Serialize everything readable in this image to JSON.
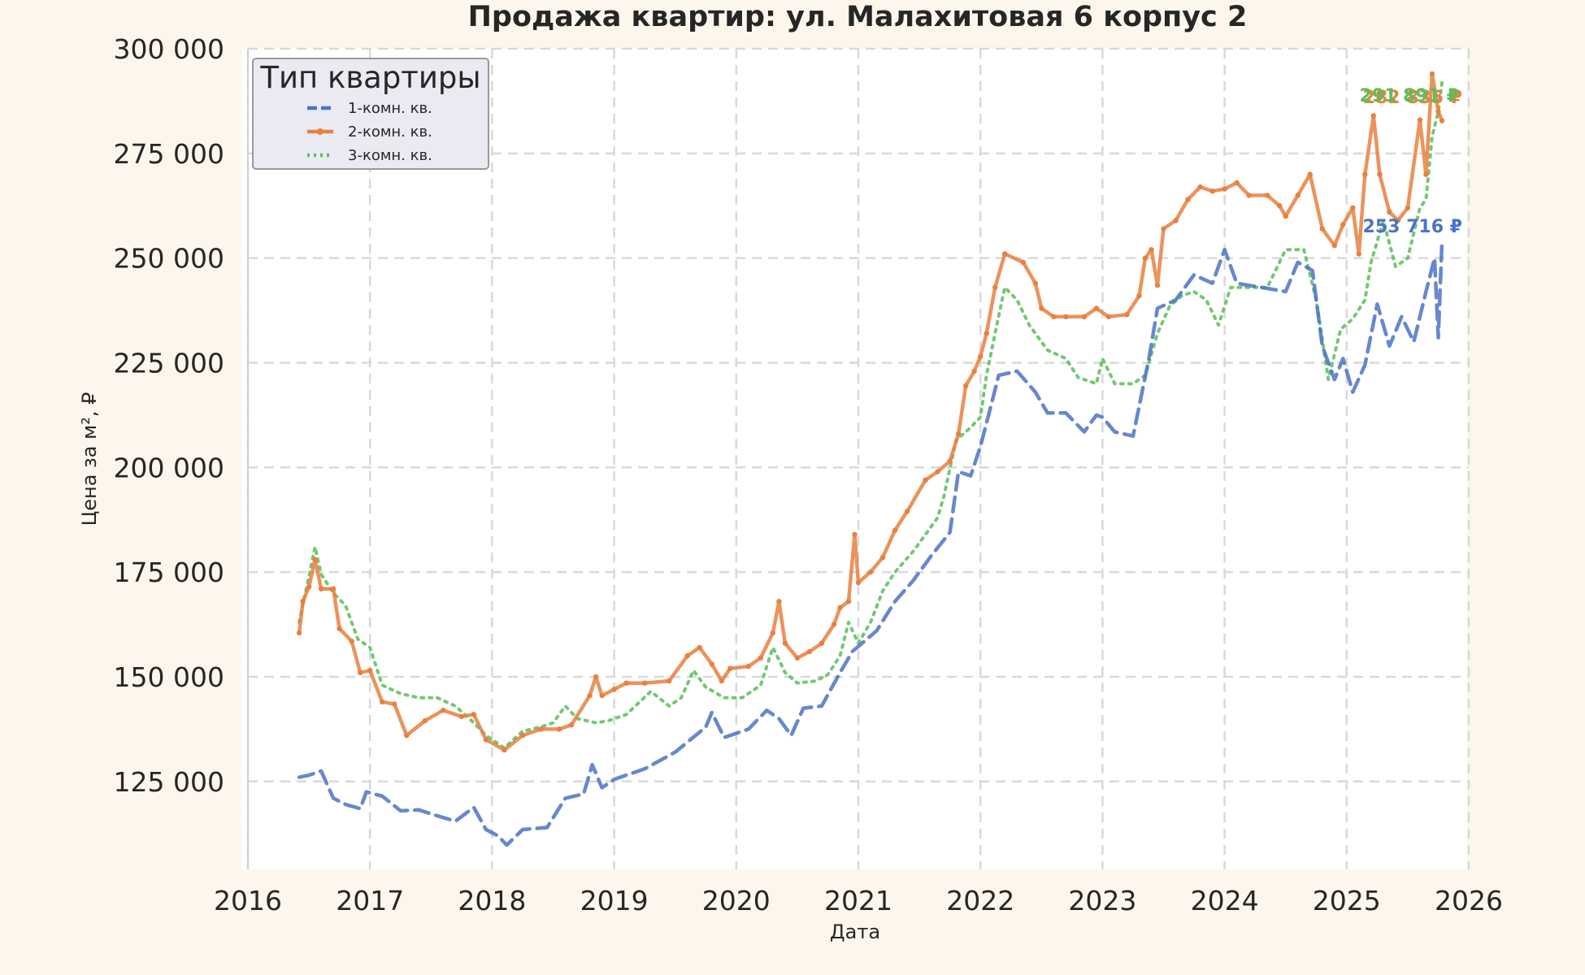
{
  "chart_data": {
    "type": "line",
    "title": "Продажа квартир: ул. Малахитовая 6 корпус 2",
    "xlabel": "Дата",
    "ylabel": "Цена за м², ₽",
    "xlim": [
      2016,
      2026
    ],
    "ylim": [
      104000,
      300000
    ],
    "x_ticks": [
      "2016",
      "2017",
      "2018",
      "2019",
      "2020",
      "2021",
      "2022",
      "2023",
      "2024",
      "2025",
      "2026"
    ],
    "y_ticks": [
      "125 000",
      "150 000",
      "175 000",
      "200 000",
      "225 000",
      "250 000",
      "275 000",
      "300 000"
    ],
    "grid": true,
    "legend": {
      "title": "Тип квартиры",
      "placement": "top-left",
      "entries": [
        "1-комн. кв.",
        "2-комн. кв.",
        "3-комн. кв."
      ]
    },
    "series": [
      {
        "name": "1-комн. кв.",
        "color": "#4c72c8",
        "style": "dashed",
        "end_label": "253 716 ₽",
        "points": [
          [
            2016.42,
            126000
          ],
          [
            2016.5,
            126500
          ],
          [
            2016.6,
            127500
          ],
          [
            2016.7,
            121000
          ],
          [
            2016.8,
            119500
          ],
          [
            2016.92,
            118500
          ],
          [
            2016.97,
            122500
          ],
          [
            2017.1,
            121500
          ],
          [
            2017.25,
            118000
          ],
          [
            2017.4,
            118200
          ],
          [
            2017.55,
            116800
          ],
          [
            2017.7,
            115500
          ],
          [
            2017.85,
            118800
          ],
          [
            2017.95,
            113500
          ],
          [
            2018.05,
            112000
          ],
          [
            2018.12,
            109800
          ],
          [
            2018.25,
            113500
          ],
          [
            2018.45,
            114000
          ],
          [
            2018.6,
            121000
          ],
          [
            2018.75,
            122000
          ],
          [
            2018.82,
            129000
          ],
          [
            2018.9,
            123500
          ],
          [
            2019.0,
            125500
          ],
          [
            2019.25,
            128000
          ],
          [
            2019.5,
            132000
          ],
          [
            2019.75,
            138000
          ],
          [
            2019.8,
            141500
          ],
          [
            2019.9,
            135500
          ],
          [
            2020.1,
            137500
          ],
          [
            2020.25,
            142000
          ],
          [
            2020.35,
            140000
          ],
          [
            2020.45,
            136000
          ],
          [
            2020.55,
            142500
          ],
          [
            2020.7,
            143000
          ],
          [
            2020.85,
            151000
          ],
          [
            2020.95,
            156000
          ],
          [
            2021.15,
            161000
          ],
          [
            2021.3,
            168000
          ],
          [
            2021.45,
            173000
          ],
          [
            2021.6,
            179000
          ],
          [
            2021.75,
            184500
          ],
          [
            2021.82,
            199000
          ],
          [
            2021.92,
            198000
          ],
          [
            2022.0,
            205000
          ],
          [
            2022.08,
            214000
          ],
          [
            2022.15,
            222000
          ],
          [
            2022.3,
            223000
          ],
          [
            2022.45,
            218000
          ],
          [
            2022.55,
            213000
          ],
          [
            2022.7,
            213000
          ],
          [
            2022.85,
            208500
          ],
          [
            2022.95,
            212500
          ],
          [
            2023.0,
            212000
          ],
          [
            2023.1,
            208500
          ],
          [
            2023.25,
            207500
          ],
          [
            2023.38,
            226000
          ],
          [
            2023.45,
            238000
          ],
          [
            2023.6,
            240000
          ],
          [
            2023.75,
            246000
          ],
          [
            2023.9,
            244000
          ],
          [
            2024.0,
            252000
          ],
          [
            2024.1,
            244000
          ],
          [
            2024.3,
            243000
          ],
          [
            2024.5,
            242000
          ],
          [
            2024.6,
            249000
          ],
          [
            2024.72,
            247000
          ],
          [
            2024.8,
            229000
          ],
          [
            2024.9,
            221000
          ],
          [
            2024.97,
            226000
          ],
          [
            2025.05,
            218000
          ],
          [
            2025.15,
            224500
          ],
          [
            2025.25,
            239000
          ],
          [
            2025.35,
            229000
          ],
          [
            2025.45,
            236000
          ],
          [
            2025.55,
            230000
          ],
          [
            2025.65,
            242000
          ],
          [
            2025.72,
            250000
          ],
          [
            2025.75,
            231000
          ],
          [
            2025.78,
            253716
          ]
        ]
      },
      {
        "name": "2-комн. кв.",
        "color": "#e8803f",
        "style": "solid-markers",
        "end_label": "282 835 ₽",
        "points": [
          [
            2016.42,
            160500
          ],
          [
            2016.45,
            168000
          ],
          [
            2016.5,
            171500
          ],
          [
            2016.55,
            178000
          ],
          [
            2016.6,
            171000
          ],
          [
            2016.7,
            171000
          ],
          [
            2016.75,
            161500
          ],
          [
            2016.85,
            158500
          ],
          [
            2016.92,
            151000
          ],
          [
            2017.0,
            151500
          ],
          [
            2017.1,
            144000
          ],
          [
            2017.2,
            143500
          ],
          [
            2017.3,
            136000
          ],
          [
            2017.45,
            139500
          ],
          [
            2017.6,
            142000
          ],
          [
            2017.75,
            140500
          ],
          [
            2017.85,
            141000
          ],
          [
            2017.95,
            135000
          ],
          [
            2018.1,
            132500
          ],
          [
            2018.25,
            136000
          ],
          [
            2018.4,
            137500
          ],
          [
            2018.55,
            137500
          ],
          [
            2018.65,
            138500
          ],
          [
            2018.8,
            145500
          ],
          [
            2018.85,
            150000
          ],
          [
            2018.9,
            145500
          ],
          [
            2019.0,
            147000
          ],
          [
            2019.1,
            148500
          ],
          [
            2019.25,
            148500
          ],
          [
            2019.45,
            149000
          ],
          [
            2019.6,
            155000
          ],
          [
            2019.7,
            157000
          ],
          [
            2019.8,
            153000
          ],
          [
            2019.88,
            149000
          ],
          [
            2019.95,
            152000
          ],
          [
            2020.1,
            152500
          ],
          [
            2020.2,
            154500
          ],
          [
            2020.3,
            160500
          ],
          [
            2020.35,
            168000
          ],
          [
            2020.4,
            158000
          ],
          [
            2020.5,
            154500
          ],
          [
            2020.6,
            156000
          ],
          [
            2020.7,
            158000
          ],
          [
            2020.8,
            162500
          ],
          [
            2020.85,
            166500
          ],
          [
            2020.92,
            168000
          ],
          [
            2020.97,
            184000
          ],
          [
            2021.0,
            172500
          ],
          [
            2021.1,
            175000
          ],
          [
            2021.2,
            178500
          ],
          [
            2021.3,
            185000
          ],
          [
            2021.4,
            189500
          ],
          [
            2021.55,
            197000
          ],
          [
            2021.65,
            199000
          ],
          [
            2021.75,
            201500
          ],
          [
            2021.82,
            208000
          ],
          [
            2021.88,
            219500
          ],
          [
            2021.95,
            223000
          ],
          [
            2022.0,
            226500
          ],
          [
            2022.05,
            232000
          ],
          [
            2022.12,
            243000
          ],
          [
            2022.2,
            251000
          ],
          [
            2022.35,
            249000
          ],
          [
            2022.45,
            244000
          ],
          [
            2022.5,
            238000
          ],
          [
            2022.6,
            236000
          ],
          [
            2022.7,
            236000
          ],
          [
            2022.85,
            236000
          ],
          [
            2022.95,
            238000
          ],
          [
            2023.05,
            236000
          ],
          [
            2023.2,
            236500
          ],
          [
            2023.3,
            241000
          ],
          [
            2023.35,
            250000
          ],
          [
            2023.4,
            252000
          ],
          [
            2023.45,
            243500
          ],
          [
            2023.5,
            257000
          ],
          [
            2023.6,
            259000
          ],
          [
            2023.7,
            264000
          ],
          [
            2023.8,
            267000
          ],
          [
            2023.9,
            266000
          ],
          [
            2024.0,
            266500
          ],
          [
            2024.1,
            268000
          ],
          [
            2024.2,
            265000
          ],
          [
            2024.35,
            265000
          ],
          [
            2024.45,
            262500
          ],
          [
            2024.5,
            260000
          ],
          [
            2024.6,
            265000
          ],
          [
            2024.7,
            270000
          ],
          [
            2024.8,
            257000
          ],
          [
            2024.9,
            253000
          ],
          [
            2024.97,
            258000
          ],
          [
            2025.05,
            262000
          ],
          [
            2025.1,
            251000
          ],
          [
            2025.15,
            270000
          ],
          [
            2025.22,
            284000
          ],
          [
            2025.27,
            270000
          ],
          [
            2025.35,
            261000
          ],
          [
            2025.42,
            259000
          ],
          [
            2025.5,
            262000
          ],
          [
            2025.6,
            283000
          ],
          [
            2025.65,
            270000
          ],
          [
            2025.7,
            294000
          ],
          [
            2025.75,
            285000
          ],
          [
            2025.78,
            282835
          ]
        ]
      },
      {
        "name": "3-комн. кв.",
        "color": "#5bbf5b",
        "style": "dotted",
        "end_label": "291 891 ₽",
        "points": [
          [
            2016.42,
            163000
          ],
          [
            2016.5,
            174000
          ],
          [
            2016.55,
            181000
          ],
          [
            2016.6,
            174500
          ],
          [
            2016.7,
            170000
          ],
          [
            2016.8,
            167000
          ],
          [
            2016.9,
            159000
          ],
          [
            2017.0,
            157000
          ],
          [
            2017.1,
            148000
          ],
          [
            2017.25,
            146000
          ],
          [
            2017.4,
            145000
          ],
          [
            2017.55,
            145000
          ],
          [
            2017.7,
            143000
          ],
          [
            2017.85,
            139000
          ],
          [
            2017.95,
            136000
          ],
          [
            2018.1,
            133000
          ],
          [
            2018.25,
            137000
          ],
          [
            2018.4,
            138000
          ],
          [
            2018.5,
            139000
          ],
          [
            2018.6,
            143000
          ],
          [
            2018.7,
            140000
          ],
          [
            2018.85,
            139000
          ],
          [
            2018.95,
            139500
          ],
          [
            2019.1,
            141000
          ],
          [
            2019.3,
            146500
          ],
          [
            2019.45,
            143000
          ],
          [
            2019.55,
            145000
          ],
          [
            2019.65,
            151500
          ],
          [
            2019.75,
            147500
          ],
          [
            2019.9,
            145000
          ],
          [
            2020.05,
            145000
          ],
          [
            2020.2,
            148000
          ],
          [
            2020.3,
            157000
          ],
          [
            2020.4,
            151000
          ],
          [
            2020.5,
            148500
          ],
          [
            2020.65,
            149000
          ],
          [
            2020.75,
            150500
          ],
          [
            2020.85,
            155000
          ],
          [
            2020.92,
            163000
          ],
          [
            2021.0,
            158000
          ],
          [
            2021.1,
            163000
          ],
          [
            2021.2,
            170500
          ],
          [
            2021.3,
            175000
          ],
          [
            2021.45,
            180000
          ],
          [
            2021.55,
            184000
          ],
          [
            2021.65,
            188000
          ],
          [
            2021.7,
            193000
          ],
          [
            2021.8,
            206500
          ],
          [
            2021.9,
            209000
          ],
          [
            2022.0,
            212000
          ],
          [
            2022.05,
            222000
          ],
          [
            2022.12,
            232000
          ],
          [
            2022.2,
            243000
          ],
          [
            2022.3,
            240000
          ],
          [
            2022.4,
            234000
          ],
          [
            2022.55,
            228000
          ],
          [
            2022.7,
            226000
          ],
          [
            2022.8,
            221500
          ],
          [
            2022.95,
            220000
          ],
          [
            2023.0,
            226000
          ],
          [
            2023.1,
            220000
          ],
          [
            2023.25,
            220000
          ],
          [
            2023.35,
            222000
          ],
          [
            2023.45,
            232000
          ],
          [
            2023.55,
            238500
          ],
          [
            2023.65,
            241000
          ],
          [
            2023.75,
            242000
          ],
          [
            2023.85,
            240000
          ],
          [
            2023.95,
            234000
          ],
          [
            2024.05,
            243000
          ],
          [
            2024.2,
            243000
          ],
          [
            2024.35,
            243000
          ],
          [
            2024.5,
            252000
          ],
          [
            2024.65,
            252000
          ],
          [
            2024.75,
            240000
          ],
          [
            2024.85,
            221000
          ],
          [
            2024.95,
            233000
          ],
          [
            2025.05,
            235500
          ],
          [
            2025.15,
            240000
          ],
          [
            2025.2,
            249000
          ],
          [
            2025.3,
            259000
          ],
          [
            2025.4,
            248000
          ],
          [
            2025.5,
            250000
          ],
          [
            2025.6,
            262000
          ],
          [
            2025.65,
            264000
          ],
          [
            2025.7,
            279000
          ],
          [
            2025.75,
            285000
          ],
          [
            2025.78,
            291891
          ]
        ]
      }
    ]
  }
}
